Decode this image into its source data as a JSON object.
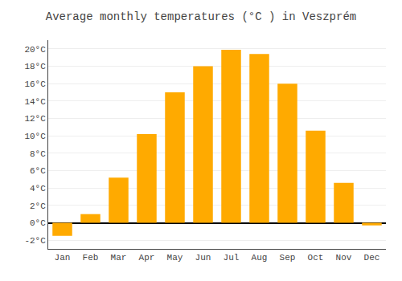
{
  "chart_data": {
    "type": "bar",
    "title": "Average monthly temperatures (°C ) in Veszprém",
    "categories": [
      "Jan",
      "Feb",
      "Mar",
      "Apr",
      "May",
      "Jun",
      "Jul",
      "Aug",
      "Sep",
      "Oct",
      "Nov",
      "Dec"
    ],
    "values": [
      -1.5,
      1.0,
      5.2,
      10.2,
      15.0,
      18.0,
      19.9,
      19.4,
      16.0,
      10.6,
      4.6,
      -0.3
    ],
    "color": "#FFAA00",
    "ylim": [
      -3,
      21
    ],
    "yticks": [
      {
        "value": -2,
        "label": "-2°C"
      },
      {
        "value": 0,
        "label": "0°C"
      },
      {
        "value": 2,
        "label": "2°C"
      },
      {
        "value": 4,
        "label": "4°C"
      },
      {
        "value": 6,
        "label": "6°C"
      },
      {
        "value": 8,
        "label": "8°C"
      },
      {
        "value": 10,
        "label": "10°C"
      },
      {
        "value": 12,
        "label": "12°C"
      },
      {
        "value": 14,
        "label": "14°C"
      },
      {
        "value": 16,
        "label": "16°C"
      },
      {
        "value": 18,
        "label": "18°C"
      },
      {
        "value": 20,
        "label": "20°C"
      }
    ],
    "grid": true
  }
}
